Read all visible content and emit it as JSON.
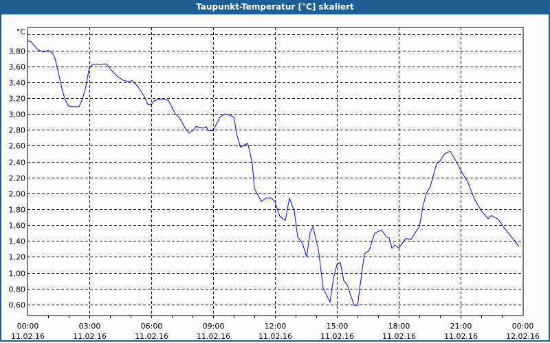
{
  "window": {
    "title": "Taupunkt-Temperatur [°C] skaliert"
  },
  "chart_data": {
    "type": "line",
    "title": "Taupunkt-Temperatur [°C] skaliert",
    "ylabel": "°C",
    "xlabel": "",
    "ylim": [
      0.46,
      4.09
    ],
    "xlim": [
      "11.02.16 00:00",
      "12.02.16 00:00"
    ],
    "grid": true,
    "line_color": "#0000ff",
    "y_ticks": [
      {
        "value": 4.0,
        "label": ""
      },
      {
        "value": 3.8,
        "label": "3,80"
      },
      {
        "value": 3.6,
        "label": "3,60"
      },
      {
        "value": 3.4,
        "label": "3,40"
      },
      {
        "value": 3.2,
        "label": "3,20"
      },
      {
        "value": 3.0,
        "label": "3,00"
      },
      {
        "value": 2.8,
        "label": "2,80"
      },
      {
        "value": 2.6,
        "label": "2,60"
      },
      {
        "value": 2.4,
        "label": "2,40"
      },
      {
        "value": 2.2,
        "label": "2,20"
      },
      {
        "value": 2.0,
        "label": "2,00"
      },
      {
        "value": 1.8,
        "label": "1,80"
      },
      {
        "value": 1.6,
        "label": "1,60"
      },
      {
        "value": 1.4,
        "label": "1,40"
      },
      {
        "value": 1.2,
        "label": "1,20"
      },
      {
        "value": 1.0,
        "label": "1,00"
      },
      {
        "value": 0.8,
        "label": "0,80"
      },
      {
        "value": 0.6,
        "label": "0,60"
      }
    ],
    "x_ticks": [
      {
        "time": "00:00",
        "date": "11.02.16"
      },
      {
        "time": "03:00",
        "date": "11.02.16"
      },
      {
        "time": "06:00",
        "date": "11.02.16"
      },
      {
        "time": "09:00",
        "date": "11.02.16"
      },
      {
        "time": "12:00",
        "date": "11.02.16"
      },
      {
        "time": "15:00",
        "date": "11.02.16"
      },
      {
        "time": "18:00",
        "date": "11.02.16"
      },
      {
        "time": "21:00",
        "date": "11.02.16"
      },
      {
        "time": "00:00",
        "date": "12.02.16"
      }
    ],
    "series": [
      {
        "x": [
          "00:02",
          "00:10",
          "00:30",
          "00:46",
          "01:00",
          "01:12",
          "01:20",
          "01:30",
          "01:40",
          "01:50",
          "02:00",
          "02:10",
          "02:30",
          "02:40",
          "02:50",
          "03:00",
          "03:10",
          "03:20",
          "03:30",
          "03:40",
          "03:50",
          "04:00",
          "04:20",
          "04:40",
          "04:56",
          "05:04",
          "05:20",
          "05:40",
          "05:50",
          "06:00",
          "06:10",
          "06:30",
          "06:50",
          "07:10",
          "07:24",
          "07:40",
          "07:50",
          "08:04",
          "08:10",
          "08:24",
          "08:32",
          "08:40",
          "08:46",
          "09:00",
          "09:20",
          "09:34",
          "09:50",
          "10:00",
          "10:10",
          "10:20",
          "10:40",
          "10:46",
          "10:54",
          "11:00",
          "11:20",
          "11:34",
          "11:50",
          "12:00",
          "12:14",
          "12:30",
          "12:42",
          "12:56",
          "13:06",
          "13:20",
          "13:32",
          "13:42",
          "13:50",
          "14:06",
          "14:20",
          "14:40",
          "14:50",
          "15:00",
          "15:10",
          "15:20",
          "15:30",
          "15:50",
          "16:00",
          "16:20",
          "16:34",
          "16:50",
          "17:10",
          "17:24",
          "17:32",
          "17:40",
          "17:50",
          "18:00",
          "18:20",
          "18:36",
          "18:50",
          "19:00",
          "19:10",
          "19:20",
          "19:32",
          "19:50",
          "20:00",
          "20:14",
          "20:30",
          "20:46",
          "21:04",
          "21:20",
          "21:40",
          "22:00",
          "22:20",
          "22:30",
          "22:50",
          "23:06",
          "23:50"
        ],
        "y": [
          3.92,
          3.91,
          3.81,
          3.78,
          3.8,
          3.77,
          3.7,
          3.52,
          3.32,
          3.17,
          3.1,
          3.09,
          3.09,
          3.19,
          3.35,
          3.59,
          3.62,
          3.63,
          3.62,
          3.63,
          3.63,
          3.57,
          3.48,
          3.42,
          3.41,
          3.42,
          3.35,
          3.22,
          3.12,
          3.12,
          3.17,
          3.19,
          3.17,
          3.0,
          2.94,
          2.81,
          2.76,
          2.8,
          2.84,
          2.83,
          2.82,
          2.84,
          2.79,
          2.79,
          2.96,
          3.0,
          2.98,
          2.96,
          2.72,
          2.58,
          2.63,
          2.54,
          2.37,
          2.06,
          1.9,
          1.94,
          1.94,
          1.89,
          1.71,
          1.66,
          1.94,
          1.78,
          1.45,
          1.37,
          1.2,
          1.5,
          1.58,
          1.3,
          0.81,
          0.63,
          0.93,
          1.1,
          1.13,
          0.9,
          0.85,
          0.59,
          0.59,
          1.24,
          1.28,
          1.5,
          1.54,
          1.45,
          1.44,
          1.31,
          1.35,
          1.31,
          1.43,
          1.42,
          1.52,
          1.58,
          1.83,
          2.0,
          2.09,
          2.37,
          2.41,
          2.5,
          2.53,
          2.41,
          2.26,
          2.15,
          1.93,
          1.78,
          1.68,
          1.72,
          1.67,
          1.57,
          1.33
        ]
      }
    ]
  }
}
